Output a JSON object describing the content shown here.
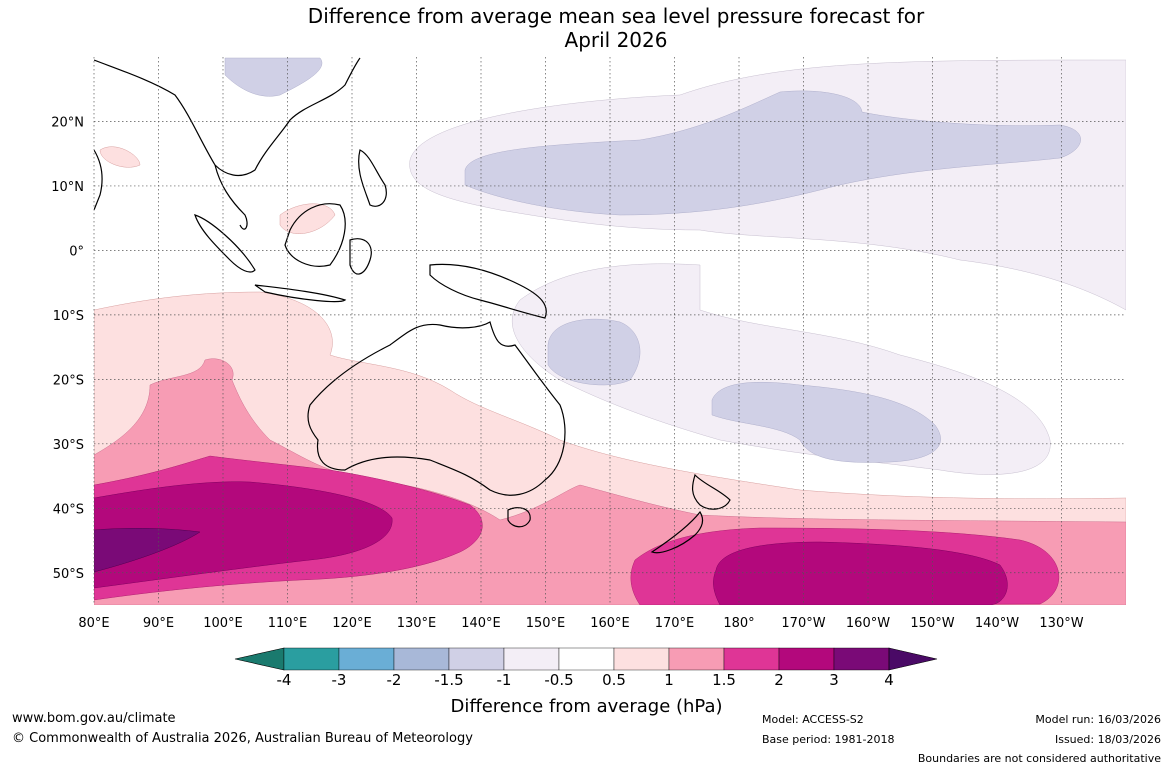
{
  "title": {
    "line1": "Difference from average mean sea level pressure forecast for",
    "line2": "April 2026"
  },
  "map": {
    "longitude_labels": [
      "80°E",
      "90°E",
      "100°E",
      "110°E",
      "120°E",
      "130°E",
      "140°E",
      "150°E",
      "160°E",
      "170°E",
      "180°",
      "170°W",
      "160°W",
      "150°W",
      "140°W",
      "130°W"
    ],
    "latitude_labels": [
      "20°N",
      "10°N",
      "0°",
      "10°S",
      "20°S",
      "30°S",
      "40°S",
      "50°S"
    ],
    "lon_range": [
      80,
      240
    ],
    "lat_range": [
      -55,
      30
    ]
  },
  "colorbar": {
    "labels": [
      "-4",
      "-3",
      "-2",
      "-1.5",
      "-1",
      "-0.5",
      "0.5",
      "1",
      "1.5",
      "2",
      "3",
      "4"
    ],
    "colors": [
      "#1a7a6e",
      "#2a9ea0",
      "#6aaed6",
      "#a8b8d8",
      "#d0d0e6",
      "#f3eef6",
      "#ffffff",
      "#fde0e0",
      "#f79cb4",
      "#df3596",
      "#b3087c",
      "#7a0a77",
      "#4a0a66"
    ],
    "title": "Difference from average (hPa)"
  },
  "footer": {
    "website": "www.bom.gov.au/climate",
    "copyright": "© Commonwealth of Australia 2026, Australian Bureau of Meteorology",
    "model": "Model: ACCESS-S2",
    "base_period": "Base period: 1981-2018",
    "model_run": "Model run: 16/03/2026",
    "issued": "Issued: 18/03/2026",
    "disclaimer": "Boundaries are not considered authoritative"
  }
}
